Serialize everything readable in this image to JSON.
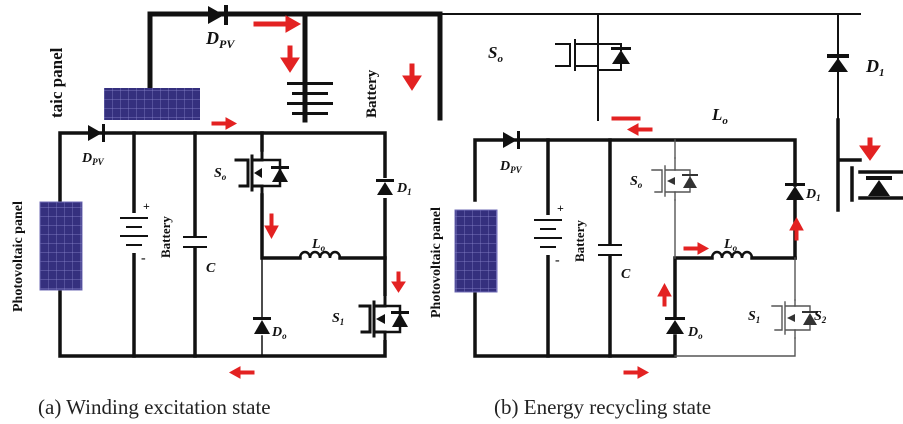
{
  "top_strip": {
    "labels": {
      "d_pv": "D",
      "d_pv_sub": "PV",
      "s_o": "S",
      "s_o_sub": "o",
      "l_o": "L",
      "l_o_sub": "o",
      "d_1": "D",
      "d_1_sub": "1",
      "battery": "Battery",
      "pv_panel": "taic panel"
    }
  },
  "circuit_a": {
    "caption": "(a) Winding excitation state",
    "labels": {
      "pv_panel": "Photovoltaic panel",
      "d_pv": "D",
      "d_pv_sub": "PV",
      "battery": "Battery",
      "plus": "+",
      "minus": "-",
      "c": "C",
      "s_o": "S",
      "s_o_sub": "o",
      "l_o": "L",
      "l_o_sub": "o",
      "d_1": "D",
      "d_1_sub": "1",
      "d_o": "D",
      "d_o_sub": "o",
      "s_1": "S",
      "s_1_sub": "1"
    }
  },
  "circuit_b": {
    "caption": "(b) Energy recycling state",
    "labels": {
      "pv_panel": "Photovoltaic panel",
      "d_pv": "D",
      "d_pv_sub": "PV",
      "battery": "Battery",
      "plus": "+",
      "minus": "-",
      "c": "C",
      "s_o": "S",
      "s_o_sub": "o",
      "l_o": "L",
      "l_o_sub": "o",
      "d_1": "D",
      "d_1_sub": "1",
      "d_o": "D",
      "d_o_sub": "o",
      "s_1": "S",
      "s_1_sub": "1",
      "s_2": "S",
      "s_2_sub": "2"
    }
  }
}
